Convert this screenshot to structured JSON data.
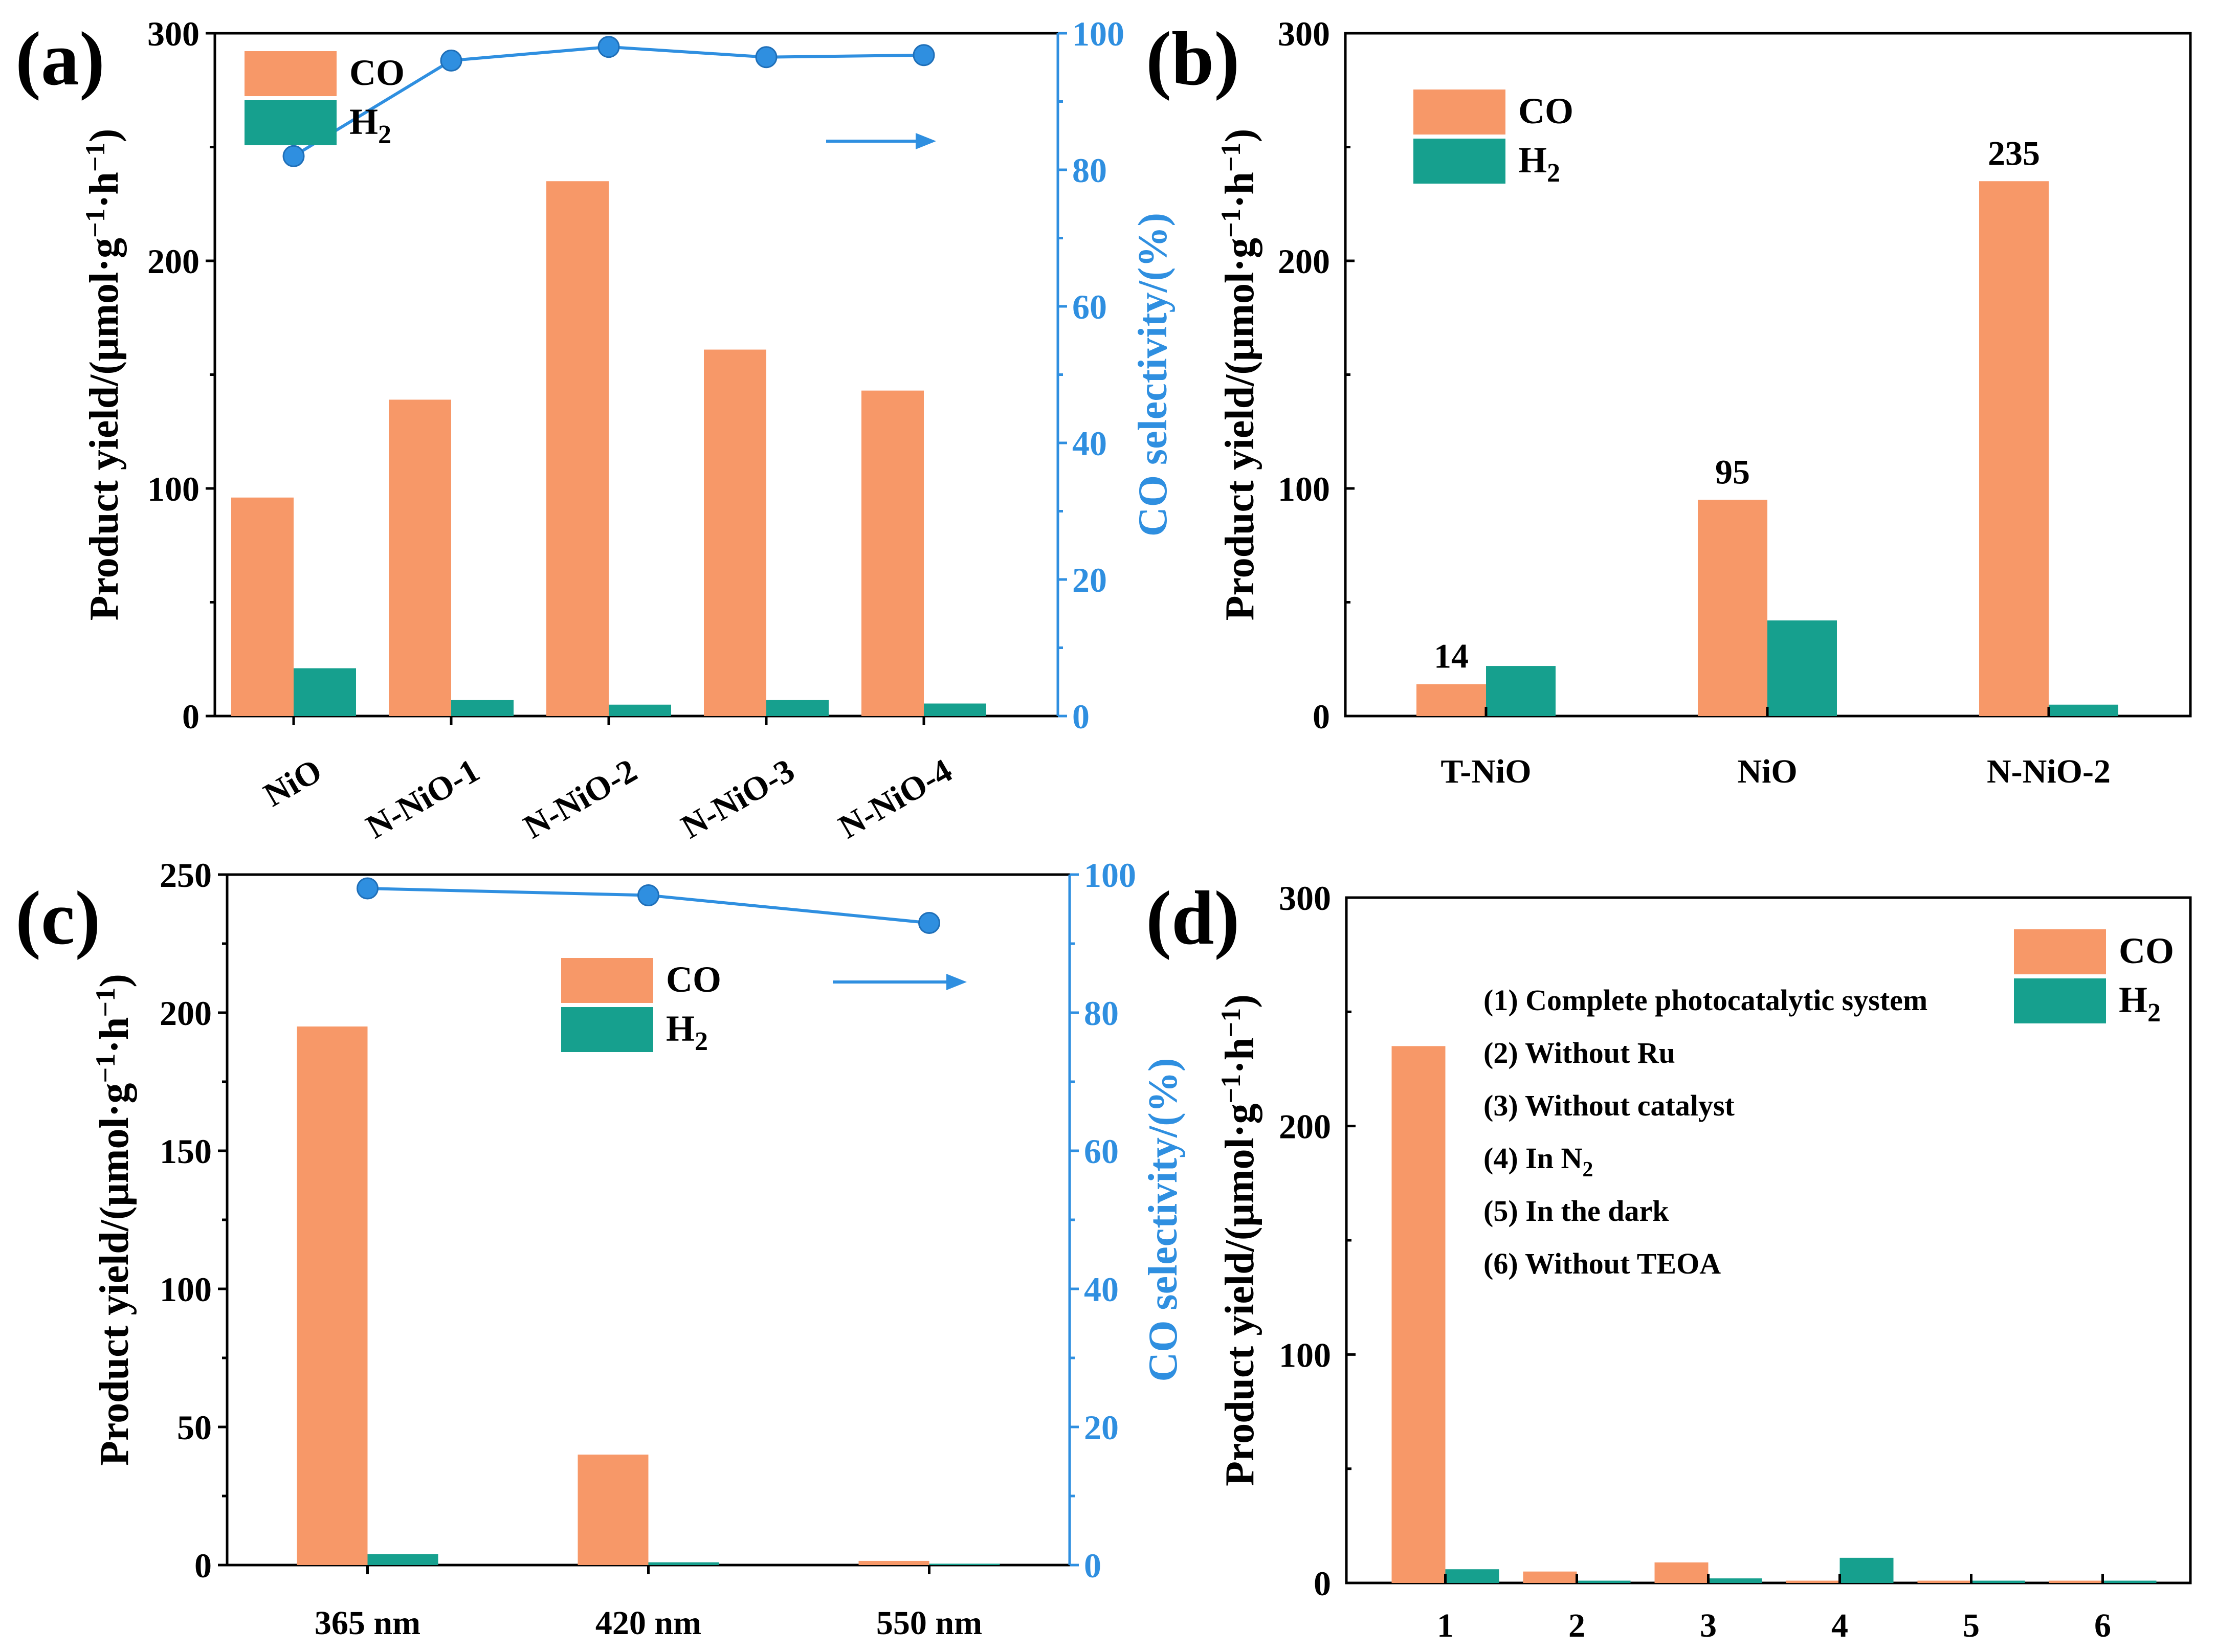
{
  "colors": {
    "co": "#F79868",
    "h2": "#16A08E",
    "selectivity": "#2F8FE0"
  },
  "units": {
    "mu": "μ",
    "middot": "·"
  },
  "chart_data": [
    {
      "type": "bar",
      "panel_label": "(a)",
      "categories": [
        "NiO",
        "N-NiO-1",
        "N-NiO-2",
        "N-NiO-3",
        "N-NiO-4"
      ],
      "series": [
        {
          "name": "CO",
          "values": [
            96,
            139,
            235,
            161,
            143
          ]
        },
        {
          "name": "H2",
          "values": [
            21,
            7,
            5,
            7,
            5.5
          ]
        },
        {
          "name": "CO selectivity",
          "axis": "right",
          "type": "line",
          "values": [
            82,
            96,
            98,
            96.5,
            96.8
          ]
        }
      ],
      "ylabel": {
        "main": "Product yield/(",
        "unit": "mol",
        "sep": "g",
        "sup1": "−1",
        "sep2": "h",
        "sup2": "−1",
        "close": ")"
      },
      "ylim": [
        0,
        300
      ],
      "yticks": [
        "0",
        "100",
        "200",
        "300"
      ],
      "y2label": "CO selectivity/(%)",
      "y2lim": [
        0,
        100
      ],
      "y2ticks": [
        "0",
        "20",
        "40",
        "60",
        "80",
        "100"
      ],
      "legend": [
        {
          "label": "CO"
        },
        {
          "label": "H",
          "sub": "2"
        }
      ]
    },
    {
      "type": "bar",
      "panel_label": "(b)",
      "categories": [
        "T-NiO",
        "NiO",
        "N-NiO-2"
      ],
      "series": [
        {
          "name": "CO",
          "values": [
            14,
            95,
            235
          ]
        },
        {
          "name": "H2",
          "values": [
            22,
            42,
            5
          ]
        }
      ],
      "data_labels": [
        "14",
        "95",
        "235"
      ],
      "ylabel": {
        "main": "Product yield/(",
        "unit": "mol",
        "sep": "g",
        "sup1": "−1",
        "sep2": "h",
        "sup2": "−1",
        "close": ")"
      },
      "ylim": [
        0,
        300
      ],
      "yticks": [
        "0",
        "100",
        "200",
        "300"
      ],
      "legend": [
        {
          "label": "CO"
        },
        {
          "label": "H",
          "sub": "2"
        }
      ]
    },
    {
      "type": "bar",
      "panel_label": "(c)",
      "categories": [
        "365 nm",
        "420 nm",
        "550 nm"
      ],
      "series": [
        {
          "name": "CO",
          "values": [
            195,
            40,
            1.5
          ]
        },
        {
          "name": "H2",
          "values": [
            4,
            1,
            0.5
          ]
        },
        {
          "name": "CO selectivity",
          "axis": "right",
          "type": "line",
          "values": [
            98,
            97,
            93
          ]
        }
      ],
      "ylabel": {
        "main": "Product yield/(",
        "unit": "mol",
        "sep": "g",
        "sup1": "−1",
        "sep2": "h",
        "sup2": "−1",
        "close": ")"
      },
      "ylim": [
        0,
        250
      ],
      "yticks": [
        "0",
        "50",
        "100",
        "150",
        "200",
        "250"
      ],
      "y2label": "CO selectivity/(%)",
      "y2lim": [
        0,
        100
      ],
      "y2ticks": [
        "0",
        "20",
        "40",
        "60",
        "80",
        "100"
      ],
      "legend": [
        {
          "label": "CO"
        },
        {
          "label": "H",
          "sub": "2"
        }
      ]
    },
    {
      "type": "bar",
      "panel_label": "(d)",
      "categories": [
        "1",
        "2",
        "3",
        "4",
        "5",
        "6"
      ],
      "series": [
        {
          "name": "CO",
          "values": [
            235,
            5,
            9,
            1,
            1,
            1
          ]
        },
        {
          "name": "H2",
          "values": [
            6,
            1,
            2,
            11,
            1,
            1
          ]
        }
      ],
      "annotations": [
        {
          "text": "(1) Complete photocatalytic system"
        },
        {
          "text": "(2) Without Ru"
        },
        {
          "text": "(3) Without catalyst"
        },
        {
          "text": "(4) In  N",
          "sub": "2"
        },
        {
          "text": "(5) In the dark"
        },
        {
          "text": "(6) Without TEOA"
        }
      ],
      "ylabel": {
        "main": "Product yield/(",
        "unit": "mol",
        "sep": "g",
        "sup1": "−1",
        "sep2": "h",
        "sup2": "−1",
        "close": ")"
      },
      "ylim": [
        0,
        300
      ],
      "yticks": [
        "0",
        "100",
        "200",
        "300"
      ],
      "legend": [
        {
          "label": "CO"
        },
        {
          "label": "H",
          "sub": "2"
        }
      ]
    }
  ]
}
